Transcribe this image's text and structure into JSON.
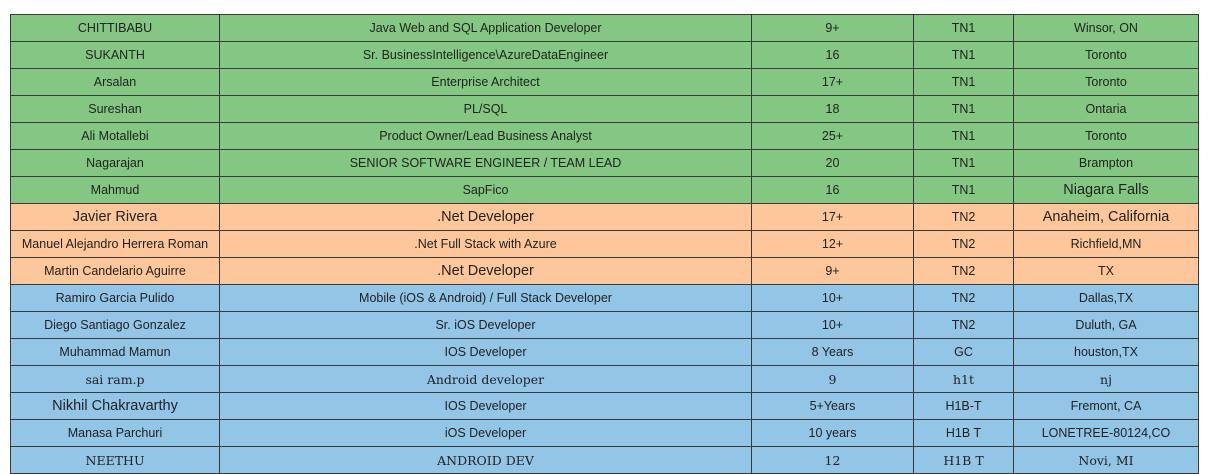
{
  "table": {
    "rows": [
      [
        "CHITTIBABU",
        "Java Web and SQL Application Developer",
        "9+",
        "TN1",
        "Winsor, ON"
      ],
      [
        "SUKANTH",
        "Sr. BusinessIntelligence\\AzureDataEngineer",
        "16",
        "TN1",
        "Toronto"
      ],
      [
        "Arsalan",
        "Enterprise Architect",
        "17+",
        "TN1",
        "Toronto"
      ],
      [
        "Sureshan",
        "PL/SQL",
        "18",
        "TN1",
        "Ontaria"
      ],
      [
        "Ali Motallebi",
        "Product Owner/Lead Business Analyst",
        "25+",
        "TN1",
        "Toronto"
      ],
      [
        "Nagarajan",
        "SENIOR SOFTWARE ENGINEER / TEAM LEAD",
        "20",
        "TN1",
        "Brampton"
      ],
      [
        "Mahmud",
        "SapFico",
        "16",
        "TN1",
        "Niagara Falls"
      ],
      [
        "Javier Rivera",
        ".Net Developer",
        "17+",
        "TN2",
        "Anaheim, California"
      ],
      [
        "Manuel Alejandro Herrera Roman",
        ".Net Full Stack with Azure",
        "12+",
        "TN2",
        "Richfield,MN"
      ],
      [
        "Martin Candelario Aguirre",
        ".Net Developer",
        "9+",
        "TN2",
        "TX"
      ],
      [
        "Ramiro Garcia Pulido",
        "Mobile (iOS & Android) / Full Stack Developer",
        "10+",
        "TN2",
        "Dallas,TX"
      ],
      [
        "Diego Santiago Gonzalez",
        "Sr. iOS Developer",
        "10+",
        "TN2",
        "Duluth, GA"
      ],
      [
        "Muhammad Mamun",
        "IOS Developer",
        "8 Years",
        "GC",
        "houston,TX"
      ],
      [
        "sai ram.p",
        "Android developer",
        "9",
        "h1t",
        "nj"
      ],
      [
        "Nikhil Chakravarthy",
        "IOS Developer",
        "5+Years",
        "H1B-T",
        "Fremont, CA"
      ],
      [
        "Manasa Parchuri",
        "iOS Developer",
        "10 years",
        "H1B T",
        "LONETREE-80124,CO"
      ],
      [
        "NEETHU",
        "ANDROID DEV",
        "12",
        "H1B T",
        "Novi, MI"
      ]
    ]
  }
}
